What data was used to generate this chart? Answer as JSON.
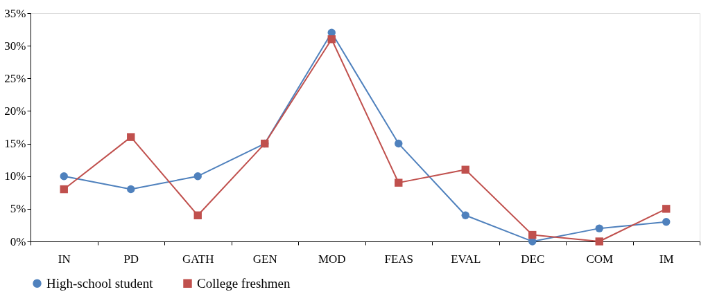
{
  "chart_data": {
    "type": "line",
    "categories": [
      "IN",
      "PD",
      "GATH",
      "GEN",
      "MOD",
      "FEAS",
      "EVAL",
      "DEC",
      "COM",
      "IM"
    ],
    "series": [
      {
        "name": "High-school student",
        "color": "#4f81bd",
        "marker": "circle",
        "values": [
          10,
          8,
          10,
          15,
          32,
          15,
          4,
          0,
          2,
          3
        ]
      },
      {
        "name": "College freshmen",
        "color": "#c0504d",
        "marker": "square",
        "values": [
          8,
          16,
          4,
          15,
          31,
          9,
          11,
          1,
          0,
          5
        ]
      }
    ],
    "ylim": [
      0,
      35
    ],
    "yticks": [
      {
        "value": 0,
        "label": "0%"
      },
      {
        "value": 5,
        "label": "5%"
      },
      {
        "value": 10,
        "label": "10%"
      },
      {
        "value": 15,
        "label": "15%"
      },
      {
        "value": 20,
        "label": "20%"
      },
      {
        "value": 25,
        "label": "25%"
      },
      {
        "value": 30,
        "label": "30%"
      },
      {
        "value": 35,
        "label": "35%"
      }
    ],
    "grid": false,
    "legend": "bottom",
    "line_style": "solid"
  }
}
